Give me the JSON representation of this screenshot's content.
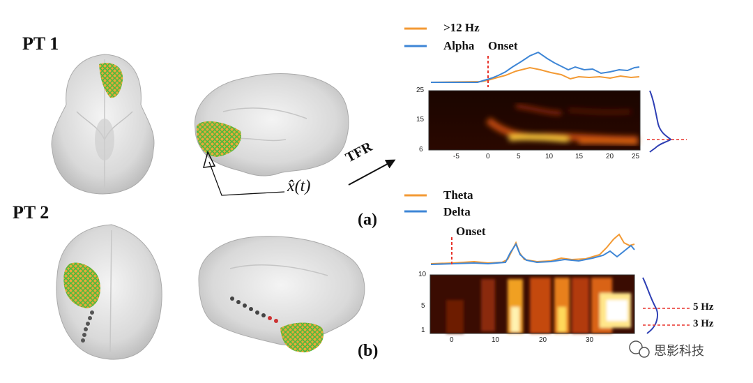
{
  "figure": {
    "pt1_label": "PT 1",
    "pt2_label": "PT 2",
    "panel_a": "(a)",
    "panel_b": "(b)",
    "tfr_label": "TFR",
    "xhat_label": "x̂(t)",
    "watermark": "思影科技",
    "colors": {
      "orange": "#f39a34",
      "blue": "#3e86d6",
      "onset": "#e8342b",
      "spectrum": "#2e3fb4"
    }
  },
  "chart_data": [
    {
      "type": "line",
      "panel": "(a) trace",
      "series": [
        {
          "name": ">12 Hz",
          "color": "#f39a34"
        },
        {
          "name": "Alpha",
          "color": "#3e86d6"
        }
      ],
      "annotations": [
        "Onset"
      ]
    },
    {
      "type": "heatmap",
      "panel": "(a) TFR",
      "y_ticks": [
        "25",
        "15",
        "6"
      ],
      "x_ticks": [
        "-5",
        "0",
        "5",
        "10",
        "15",
        "20",
        "25"
      ],
      "xlim": [
        -8,
        26
      ],
      "ylim": [
        6,
        25
      ]
    },
    {
      "type": "line",
      "panel": "(b) trace",
      "series": [
        {
          "name": "Theta",
          "color": "#f39a34"
        },
        {
          "name": "Delta",
          "color": "#3e86d6"
        }
      ],
      "annotations": [
        "Onset"
      ]
    },
    {
      "type": "heatmap",
      "panel": "(b) TFR",
      "y_ticks": [
        "10",
        "5",
        "1"
      ],
      "x_ticks": [
        "0",
        "10",
        "20",
        "30"
      ],
      "xlim": [
        -4,
        38
      ],
      "ylim": [
        1,
        10
      ],
      "annotations": [
        "5 Hz",
        "3 Hz"
      ]
    }
  ]
}
